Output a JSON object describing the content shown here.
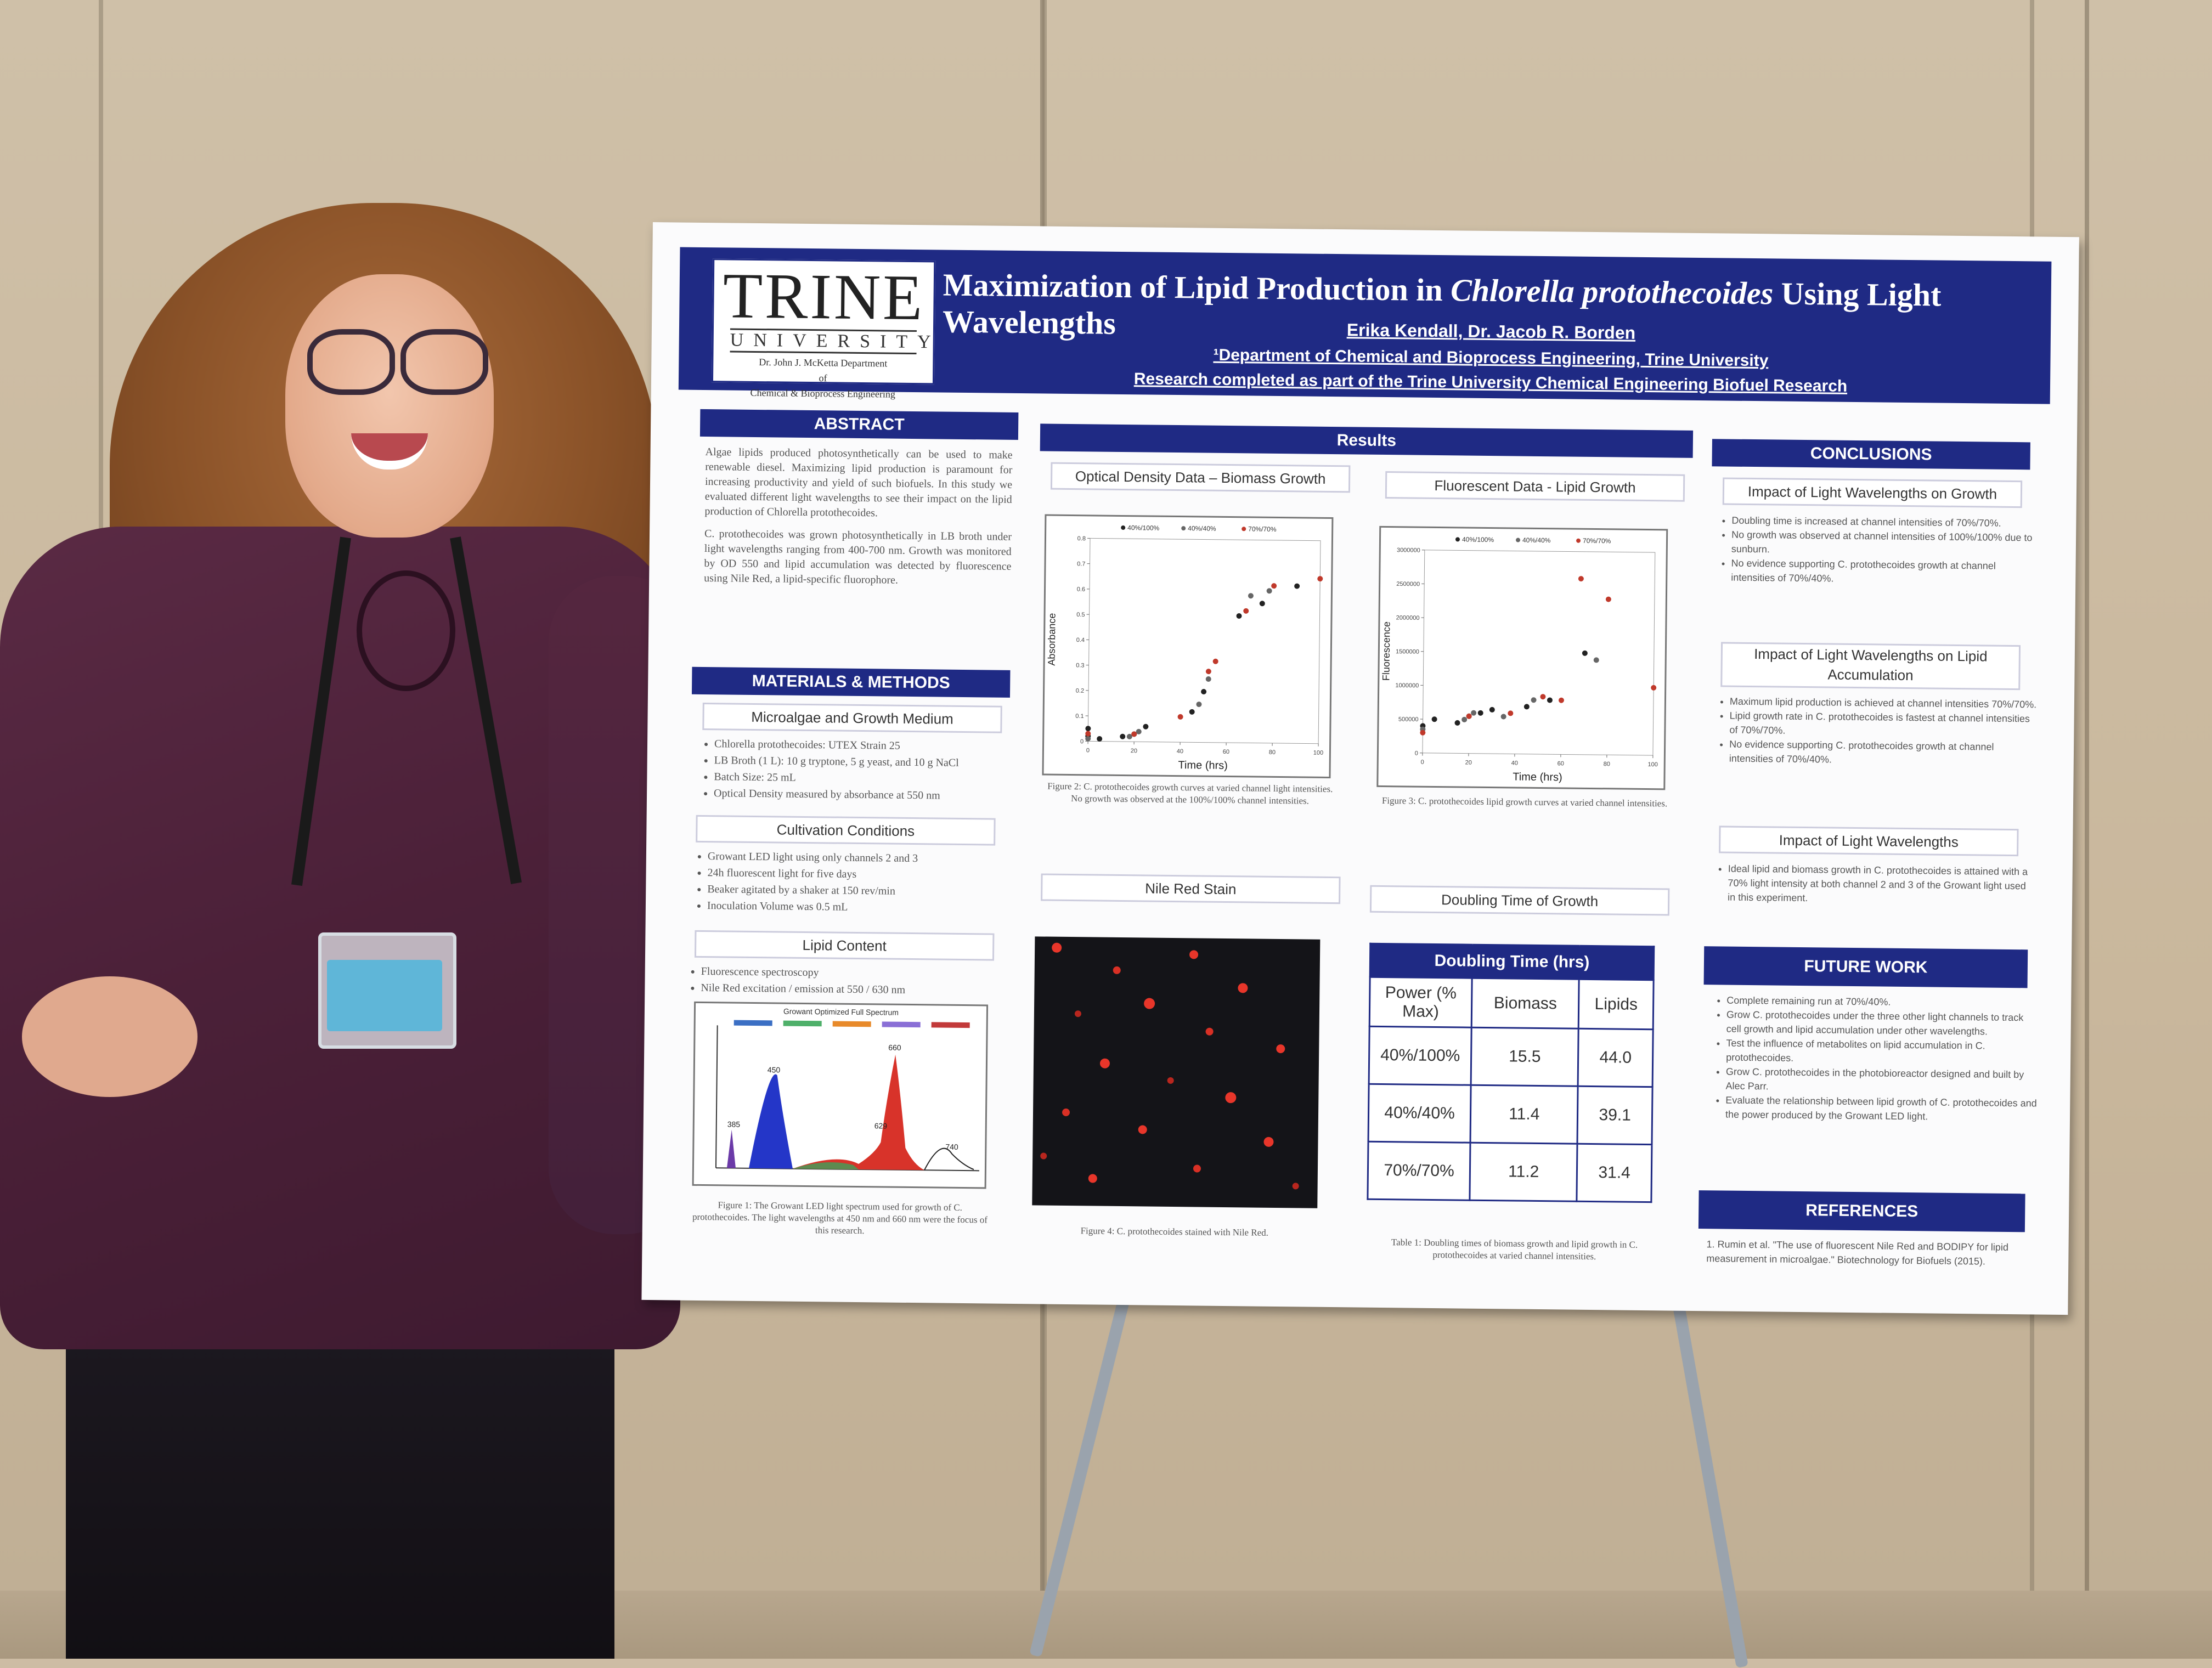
{
  "poster": {
    "logo": {
      "name": "TRINE",
      "sub": "UNIVERSITY",
      "dept_line1": "Dr. John J. McKetta Department",
      "dept_line2": "of",
      "dept_line3": "Chemical & Bioprocess Engineering"
    },
    "title_part1": "Maximization of Lipid Production in ",
    "title_species": "Chlorella protothecoides",
    "title_part2": " Using Light Wavelengths",
    "authors": "Erika Kendall, Dr. Jacob R. Borden",
    "affiliation": "¹Department of Chemical and Bioprocess Engineering, Trine University",
    "research_note": "Research completed as part of the Trine University Chemical Engineering Biofuel Research",
    "abstract": {
      "heading": "ABSTRACT",
      "p1": "Algae lipids produced photosynthetically can be used to make renewable diesel. Maximizing lipid production is paramount for increasing productivity and yield of such biofuels. In this study we evaluated different light wavelengths to see their impact on the lipid production of Chlorella protothecoides.",
      "p2": "C. protothecoides was grown photosynthetically in LB broth under light wavelengths ranging from 400-700 nm. Growth was monitored by OD 550 and lipid accumulation was detected by fluorescence using Nile Red, a lipid-specific fluorophore."
    },
    "methods": {
      "heading": "MATERIALS & METHODS",
      "sub1": "Microalgae and Growth Medium",
      "list1": [
        "Chlorella protothecoides: UTEX Strain 25",
        "LB Broth (1 L): 10 g tryptone, 5 g yeast, and 10 g NaCl",
        "Batch Size: 25 mL",
        "Optical Density measured by absorbance at 550 nm"
      ],
      "sub2": "Cultivation Conditions",
      "list2": [
        "Growant LED light using only channels 2 and 3",
        "24h fluorescent light for five days",
        "Beaker agitated by a shaker at 150 rev/min",
        "Inoculation Volume was 0.5 mL"
      ],
      "sub3": "Lipid Content",
      "list3": [
        "Fluorescence spectroscopy",
        "Nile Red excitation / emission at 550 / 630 nm"
      ],
      "fig1_title": "Growant Optimized Full Spectrum",
      "fig1_peaks": [
        "385",
        "450",
        "629",
        "660",
        "740"
      ],
      "fig1_caption": "Figure 1: The Growant LED light spectrum used for growth of C. protothecoides. The light wavelengths at 450 nm and 660 nm were the focus of this research."
    },
    "results": {
      "heading": "Results",
      "od_title": "Optical Density Data – Biomass Growth",
      "fl_title": "Fluorescent Data - Lipid Growth",
      "fig2_caption": "Figure 2: C. protothecoides growth curves at varied channel light intensities. No growth was observed at the 100%/100% channel intensities.",
      "fig3_caption": "Figure 3: C. protothecoides lipid growth curves at varied channel intensities.",
      "nile_title": "Nile Red Stain",
      "doubling_title": "Doubling Time of Growth",
      "fig4_caption": "Figure 4: C. protothecoides stained with Nile Red.",
      "table_caption": "Table 1: Doubling times of biomass growth and lipid growth in C. protothecoides at varied channel intensities.",
      "table": {
        "title": "Doubling Time (hrs)",
        "headers": [
          "Power (% Max)",
          "Biomass",
          "Lipids"
        ],
        "rows": [
          [
            "40%/100%",
            "15.5",
            "44.0"
          ],
          [
            "40%/40%",
            "11.4",
            "39.1"
          ],
          [
            "70%/70%",
            "11.2",
            "31.4"
          ]
        ]
      }
    },
    "conclusions": {
      "heading": "CONCLUSIONS",
      "sub1": "Impact of Light Wavelengths on Growth",
      "list1": [
        "Doubling time is increased at channel intensities of 70%/70%.",
        "No growth was observed at channel intensities of 100%/100% due to sunburn.",
        "No evidence supporting C. protothecoides growth at channel intensities of 70%/40%."
      ],
      "sub2": "Impact of Light Wavelengths on Lipid Accumulation",
      "list2": [
        "Maximum lipid production is achieved at channel intensities 70%/70%.",
        "Lipid growth rate in C. protothecoides is fastest at channel intensities of 70%/70%.",
        "No evidence supporting C. protothecoides growth at channel intensities of 70%/40%."
      ],
      "sub3": "Impact of Light Wavelengths",
      "list3": [
        "Ideal lipid and biomass growth in C. protothecoides is attained with a 70% light intensity at both channel 2 and 3 of the Growant light used in this experiment."
      ]
    },
    "future": {
      "heading": "FUTURE WORK",
      "list": [
        "Complete remaining run at 70%/40%.",
        "Grow C. protothecoides under the three other light channels to track cell growth and lipid accumulation under other wavelengths.",
        "Test the influence of metabolites on lipid accumulation in C. protothecoides.",
        "Grow C. protothecoides in the photobioreactor designed and built by Alec Parr.",
        "Evaluate the relationship between lipid growth of C. protothecoides and the power produced by the Growant LED light."
      ]
    },
    "references": {
      "heading": "REFERENCES",
      "item1": "1.  Rumin et al. \"The use of fluorescent Nile Red and BODIPY for lipid measurement in microalgae.\" Biotechnology for Biofuels (2015)."
    }
  },
  "chart_data": [
    {
      "type": "scatter",
      "xlabel": "Time (hrs)",
      "ylabel": "Absorbance",
      "xlim": [
        0,
        100
      ],
      "ylim": [
        0,
        0.8
      ],
      "xticks": [
        "0",
        "20",
        "40",
        "60",
        "80",
        "100"
      ],
      "yticks": [
        "0",
        "0.1",
        "0.2",
        "0.3",
        "0.4",
        "0.5",
        "0.6",
        "0.7",
        "0.8"
      ],
      "legend": "top",
      "series": [
        {
          "name": "40%/100%",
          "color": "#222222",
          "x": [
            0,
            0,
            5,
            15,
            20,
            25,
            45,
            50,
            65,
            75,
            90
          ],
          "y": [
            0.02,
            0.05,
            0.01,
            0.02,
            0.03,
            0.06,
            0.12,
            0.2,
            0.5,
            0.55,
            0.62
          ]
        },
        {
          "name": "40%/40%",
          "color": "#666666",
          "x": [
            0,
            18,
            22,
            48,
            52,
            70,
            78
          ],
          "y": [
            0.01,
            0.02,
            0.04,
            0.15,
            0.25,
            0.58,
            0.6
          ]
        },
        {
          "name": "70%/70%",
          "color": "#c0392b",
          "x": [
            0,
            20,
            40,
            52,
            55,
            68,
            80,
            100
          ],
          "y": [
            0.03,
            0.03,
            0.1,
            0.28,
            0.32,
            0.52,
            0.62,
            0.65
          ]
        }
      ]
    },
    {
      "type": "scatter",
      "xlabel": "Time (hrs)",
      "ylabel": "Fluorescence",
      "xlim": [
        0,
        100
      ],
      "ylim": [
        0,
        3000000
      ],
      "xticks": [
        "0",
        "20",
        "40",
        "60",
        "80",
        "100"
      ],
      "yticks": [
        "0",
        "500000",
        "1000000",
        "1500000",
        "2000000",
        "2500000",
        "3000000"
      ],
      "legend": "top",
      "series": [
        {
          "name": "40%/100%",
          "color": "#222222",
          "x": [
            0,
            5,
            15,
            20,
            25,
            30,
            45,
            55,
            70
          ],
          "y": [
            400000,
            500000,
            450000,
            550000,
            600000,
            650000,
            700000,
            800000,
            1500000
          ]
        },
        {
          "name": "40%/40%",
          "color": "#666666",
          "x": [
            0,
            18,
            22,
            35,
            48,
            75
          ],
          "y": [
            350000,
            500000,
            600000,
            550000,
            800000,
            1400000
          ]
        },
        {
          "name": "70%/70%",
          "color": "#c0392b",
          "x": [
            0,
            20,
            38,
            52,
            60,
            68,
            80,
            100
          ],
          "y": [
            300000,
            550000,
            600000,
            850000,
            800000,
            2600000,
            2300000,
            1000000
          ]
        }
      ]
    }
  ]
}
